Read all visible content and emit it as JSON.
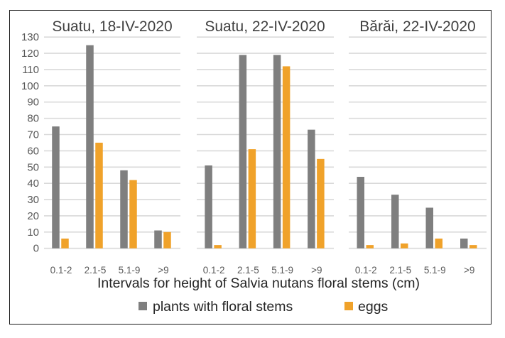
{
  "chart_data": {
    "type": "bar",
    "xlabel": "Intervals for height of Salvia nutans floral stems (cm)",
    "ylabel": "",
    "ylim": [
      0,
      130
    ],
    "yticks": [
      0,
      10,
      20,
      30,
      40,
      50,
      60,
      70,
      80,
      90,
      100,
      110,
      120,
      130
    ],
    "grid": true,
    "legend_position": "bottom",
    "categories": [
      "0.1-2",
      "2.1-5",
      "5.1-9",
      ">9"
    ],
    "series_colors": {
      "plants with floral stems": "#7F7F7F",
      "eggs": "#F0A22A"
    },
    "legend": [
      {
        "name": "plants with floral stems",
        "color": "#7F7F7F"
      },
      {
        "name": "eggs",
        "color": "#F0A22A"
      }
    ],
    "panels": [
      {
        "title": "Suatu, 18-IV-2020",
        "series": [
          {
            "name": "plants with floral stems",
            "values": [
              75,
              125,
              48,
              11
            ]
          },
          {
            "name": "eggs",
            "values": [
              6,
              65,
              42,
              10
            ]
          }
        ]
      },
      {
        "title": "Suatu, 22-IV-2020",
        "series": [
          {
            "name": "plants with floral stems",
            "values": [
              51,
              119,
              119,
              73
            ]
          },
          {
            "name": "eggs",
            "values": [
              2,
              61,
              112,
              55
            ]
          }
        ]
      },
      {
        "title": "Bărăi, 22-IV-2020",
        "series": [
          {
            "name": "plants with floral stems",
            "values": [
              44,
              33,
              25,
              6
            ]
          },
          {
            "name": "eggs",
            "values": [
              2,
              3,
              6,
              2
            ]
          }
        ]
      }
    ]
  }
}
